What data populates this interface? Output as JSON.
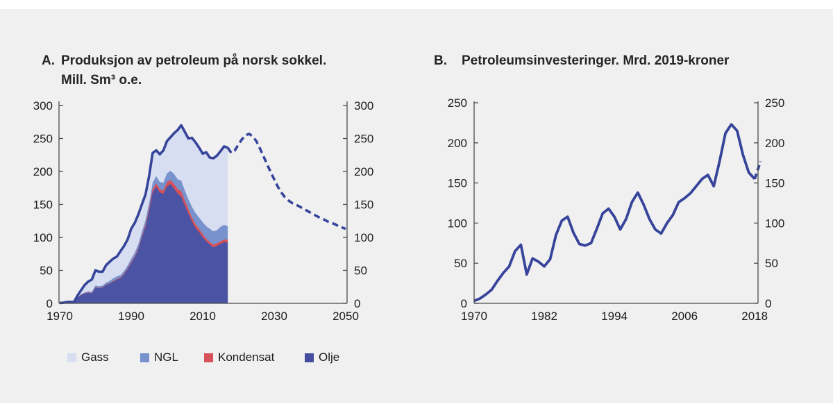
{
  "page": {
    "background": "#ffffff",
    "panel_background": "#f0f0f1",
    "text_color": "#1c1c1c"
  },
  "chart_data": [
    {
      "id": "production",
      "type": "area",
      "label": "A.",
      "title": "Produksjon av petroleum på norsk sokkel.",
      "subtitle": "Mill. Sm³ o.e.",
      "xlabel": "",
      "ylabel": "",
      "xlim": [
        1970,
        2050
      ],
      "ylim": [
        0,
        300
      ],
      "yticks": [
        0,
        50,
        100,
        150,
        200,
        250,
        300
      ],
      "xticks": [
        1970,
        1990,
        2010,
        2030,
        2050
      ],
      "dual_axis": true,
      "grid": false,
      "line_color": "#36449a",
      "x_start": 1970,
      "x_step": 1,
      "series": [
        {
          "name": "Olje",
          "color": "#4b53a4",
          "values": [
            0.3,
            0.5,
            1.6,
            1.6,
            1.8,
            9,
            13,
            15,
            16,
            15,
            24,
            23,
            24,
            28,
            30,
            33,
            36,
            38,
            44,
            52,
            61,
            70,
            82,
            100,
            116,
            140,
            168,
            177,
            168,
            166,
            177,
            181,
            174,
            166,
            162,
            148,
            136,
            124,
            114,
            108,
            100,
            94,
            89,
            85,
            87,
            90,
            93,
            92
          ]
        },
        {
          "name": "Kondensat",
          "color": "#d75158",
          "values": [
            0,
            0,
            0,
            0,
            0,
            0,
            0.3,
            0.5,
            0.5,
            0.5,
            0.5,
            0.5,
            0.5,
            0.5,
            0.5,
            1,
            1,
            1,
            1,
            1,
            1.5,
            1.5,
            2,
            2,
            3,
            4,
            5,
            5,
            5,
            5,
            7,
            6,
            7,
            7,
            8,
            8,
            7,
            6,
            6,
            5,
            5,
            4,
            4,
            4,
            4,
            4,
            4,
            4
          ]
        },
        {
          "name": "NGL",
          "color": "#7792cc",
          "values": [
            0,
            0,
            0,
            0,
            0,
            0.3,
            0.5,
            1,
            1.5,
            2,
            2.5,
            2.5,
            2.5,
            3,
            3.5,
            4,
            4,
            4,
            4,
            4.5,
            5,
            5.5,
            6,
            6.5,
            7,
            8,
            10,
            11,
            11,
            12,
            13,
            14,
            15,
            15,
            16,
            15,
            15,
            16,
            17,
            17,
            18,
            19,
            20,
            20,
            20,
            22,
            22,
            21
          ]
        },
        {
          "name": "Gass",
          "color": "#d8def2",
          "values": [
            0.2,
            0.5,
            0.4,
            0.4,
            0.2,
            2.7,
            6.2,
            11.5,
            15,
            18.5,
            23,
            22,
            21,
            26.5,
            29,
            30,
            30,
            36,
            38,
            39.5,
            45.5,
            45,
            45,
            41.5,
            39,
            41,
            45,
            39,
            42,
            49,
            49,
            51,
            62,
            75,
            84,
            89,
            92,
            105,
            107,
            106,
            104,
            112,
            108,
            111,
            113,
            115,
            119,
            119
          ]
        }
      ],
      "total_line": {
        "style": "solid",
        "width": 3.6,
        "note": "sum of stacked series"
      },
      "projection": {
        "style": "dashed",
        "x_start": 2017,
        "x_step": 1,
        "values": [
          236,
          228,
          232,
          241,
          249,
          255,
          257,
          253,
          246,
          235,
          223,
          211,
          199,
          188,
          177,
          168,
          161,
          156,
          152,
          150,
          147,
          144,
          141,
          138,
          135,
          132,
          129,
          127,
          124,
          122,
          120,
          117,
          115,
          113
        ]
      },
      "legend": [
        {
          "label": "Gass",
          "color": "#d8def2"
        },
        {
          "label": "NGL",
          "color": "#7792cc"
        },
        {
          "label": "Kondensat",
          "color": "#d75158"
        },
        {
          "label": "Olje",
          "color": "#454da0"
        }
      ],
      "legend_position": "bottom-left"
    },
    {
      "id": "investments",
      "type": "line",
      "label": "B.",
      "title": "Petroleumsinvesteringer. Mrd. 2019-kroner",
      "xlabel": "",
      "ylabel": "",
      "xlim": [
        1970,
        2019
      ],
      "ylim": [
        0,
        250
      ],
      "yticks": [
        0,
        50,
        100,
        150,
        200,
        250
      ],
      "xticks": [
        1970,
        1982,
        1994,
        2006,
        2018
      ],
      "dual_axis": true,
      "grid": false,
      "line_color": "#36449a",
      "x_start": 1970,
      "x_step": 1,
      "values": [
        3,
        6,
        11,
        17,
        28,
        38,
        46,
        65,
        73,
        36,
        56,
        52,
        46,
        55,
        85,
        103,
        108,
        88,
        74,
        72,
        75,
        93,
        112,
        118,
        108,
        92,
        105,
        126,
        138,
        123,
        105,
        92,
        87,
        100,
        110,
        126,
        131,
        137,
        146,
        155,
        160,
        146,
        177,
        212,
        223,
        215,
        185,
        163,
        155
      ],
      "projection": {
        "style": "dashed",
        "x_start": 2018,
        "x_step": 1,
        "values": [
          155,
          177
        ]
      }
    }
  ]
}
